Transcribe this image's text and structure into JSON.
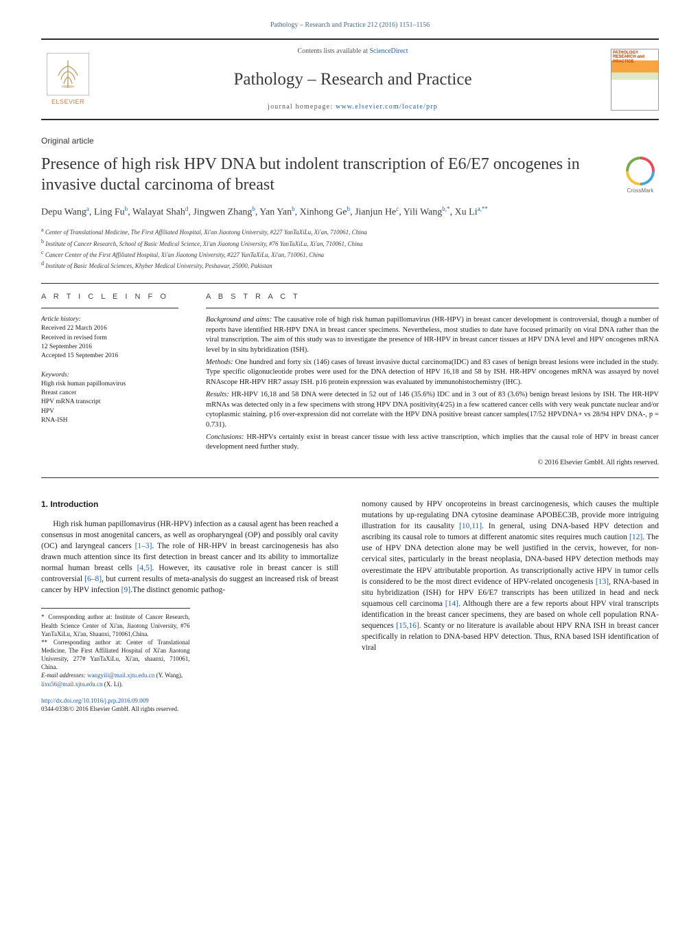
{
  "header": {
    "citation": "Pathology – Research and Practice 212 (2016) 1151–1156",
    "contents_prefix": "Contents lists available at ",
    "contents_link": "ScienceDirect",
    "journal_name": "Pathology – Research and Practice",
    "homepage_prefix": "journal homepage: ",
    "homepage_link": "www.elsevier.com/locate/prp",
    "elsevier": "ELSEVIER",
    "cover_title": "PATHOLOGY RESEARCH and PRACTICE"
  },
  "article": {
    "type": "Original article",
    "title": "Presence of high risk HPV DNA but indolent transcription of E6/E7 oncogenes in invasive ductal carcinoma of breast",
    "crossmark": "CrossMark"
  },
  "authors_html": "Depu Wang<sup>a</sup>, Ling Fu<sup>b</sup>, Walayat Shah<sup>d</sup>, Jingwen Zhang<sup>b</sup>, Yan Yan<sup>b</sup>, Xinhong Ge<sup>b</sup>, Jianjun He<sup>c</sup>, Yili Wang<sup>b,*</sup>, Xu Li<sup>a,**</sup>",
  "affiliations": [
    {
      "key": "a",
      "text": "Center of Translational Medicine, The First Affiliated Hospital, Xi'an Jiaotong University, #227 YanTaXiLu, Xi'an, 710061, China"
    },
    {
      "key": "b",
      "text": "Institute of Cancer Research, School of Basic Medical Science, Xi'an Jiaotong University, #76 YanTaXiLu, Xi'an, 710061, China"
    },
    {
      "key": "c",
      "text": "Cancer Center of the First Affiliated Hospital, Xi'an Jiaotong University, #227 YanTaXiLu, Xi'an, 710061, China"
    },
    {
      "key": "d",
      "text": "Institute of Basic Medical Sciences, Khyber Medical University, Peshawar, 25000, Pakistan"
    }
  ],
  "info": {
    "label": "a r t i c l e   i n f o",
    "history_head": "Article history:",
    "history": [
      "Received 22 March 2016",
      "Received in revised form",
      "12 September 2016",
      "Accepted 15 September 2016"
    ],
    "keywords_head": "Keywords:",
    "keywords": [
      "High risk human papillomavirus",
      "Breast cancer",
      "HPV mRNA transcript",
      "HPV",
      "RNA-ISH"
    ]
  },
  "abstract": {
    "label": "a b s t r a c t",
    "parts": [
      {
        "lead": "Background and aims:",
        "text": " The causative role of high risk human papillomavirus (HR-HPV) in breast cancer development is controversial, though a number of reports have identified HR-HPV DNA in breast cancer specimens. Nevertheless, most studies to date have focused primarily on viral DNA rather than the viral transcription. The aim of this study was to investigate the presence of HR-HPV in breast cancer tissues at HPV DNA level and HPV oncogenes mRNA level by in situ hybridization (ISH)."
      },
      {
        "lead": "Methods:",
        "text": " One hundred and forty six (146) cases of breast invasive ductal carcinoma(IDC) and 83 cases of benign breast lesions were included in the study. Type specific oligonucleotide probes were used for the DNA detection of HPV 16,18 and 58 by ISH. HR-HPV oncogenes mRNA was assayed by novel RNAscope HR-HPV HR7 assay ISH. p16 protein expression was evaluated by immunohistochemistry (IHC)."
      },
      {
        "lead": "Results:",
        "text": " HR-HPV 16,18 and 58 DNA were detected in 52 out of 146 (35.6%) IDC and in 3 out of 83 (3.6%) benign breast lesions by ISH. The HR-HPV mRNAs was detected only in a few specimens with strong HPV DNA positivity(4/25) in a few scattered cancer cells with very weak punctate nuclear and/or cytoplasmic staining. p16 over-expression did not correlate with the HPV DNA positive breast cancer samples(17/52 HPVDNA+ vs 28/94 HPV DNA-, p = 0.731)."
      },
      {
        "lead": "Conclusions:",
        "text": " HR-HPVs certainly exist in breast cancer tissue with less active transcription, which implies that the causal role of HPV in breast cancer development need further study."
      }
    ],
    "copyright": "© 2016 Elsevier GmbH. All rights reserved."
  },
  "body": {
    "intro_heading": "1.  Introduction",
    "col1": "High risk human papillomavirus (HR-HPV) infection as a causal agent has been reached a consensus in most anogenital cancers, as well as oropharyngeal (OP) and possibly oral cavity (OC) and laryngeal cancers [1–3]. The role of HR-HPV in breast carcinogenesis has also drawn much attention since its first detection in breast cancer and its ability to immortalize normal human breast cells [4,5]. However, its causative role in breast cancer is still controversial [6–8], but current results of meta-analysis do suggest an increased risk of breast cancer by HPV infection [9].The distinct genomic pathog-",
    "refs1": {
      "r1": "[1–3]",
      "r2": "[4,5]",
      "r3": "[6–8]",
      "r4": "[9]"
    },
    "col2": "nomony caused by HPV oncoproteins in breast carcinogenesis, which causes the multiple mutations by up-regulating DNA cytosine deaminase APOBEC3B, provide more intriguing illustration for its causality [10,11]. In general, using DNA-based HPV detection and ascribing its causal role to tumors at different anatomic sites requires much caution [12]. The use of HPV DNA detection alone may be well justified in the cervix, however, for non-cervical sites, particularly in the breast neoplasia, DNA-based HPV detection methods may overestimate the HPV attributable proportion. As transcriptionally active HPV in tumor cells is considered to be the most direct evidence of HPV-related oncogenesis [13], RNA-based in situ hybridization (ISH) for HPV E6/E7 transcripts has been utilized in head and neck squamous cell carcinoma [14]. Although there are a few reports about HPV viral transcripts identification in the breast cancer specimens, they are based on whole cell population RNA-sequences [15,16]. Scanty or no literature is available about HPV RNA ISH in breast cancer specifically in relation to DNA-based HPV detection. Thus, RNA based ISH identification of viral",
    "refs2": {
      "r1": "[10,11]",
      "r2": "[12]",
      "r3": "[13]",
      "r4": "[14]",
      "r5": "[15,16]"
    }
  },
  "footnotes": {
    "c1_star": "*",
    "c1": "Corresponding author at: Institute of Cancer Research, Health Science Center of Xi'an, Jiaotong University, #76 YanTaXiLu, Xi'an, Shaanxi, 710061,China.",
    "c2_star": "**",
    "c2": "Corresponding author at: Center of Translational Medicine, The First Affiliated Hospital of Xi'an Jiaotong University, 277# YanTaXiLu, Xi'an, shaanxi, 710061, China.",
    "email_label": "E-mail addresses: ",
    "email1": "wangyili@mail.xjtu.edu.cn",
    "email1_who": " (Y. Wang),",
    "email2": "lixu56@mail.xjtu.edu.cn",
    "email2_who": " (X. Li)."
  },
  "doi": {
    "link": "http://dx.doi.org/10.1016/j.prp.2016.09.009",
    "issn": "0344-0338/© 2016 Elsevier GmbH. All rights reserved."
  },
  "colors": {
    "link": "#2060b0",
    "accent_orange": "#e37a2e",
    "text": "#1a1a1a",
    "rule": "#2a2a2a"
  }
}
